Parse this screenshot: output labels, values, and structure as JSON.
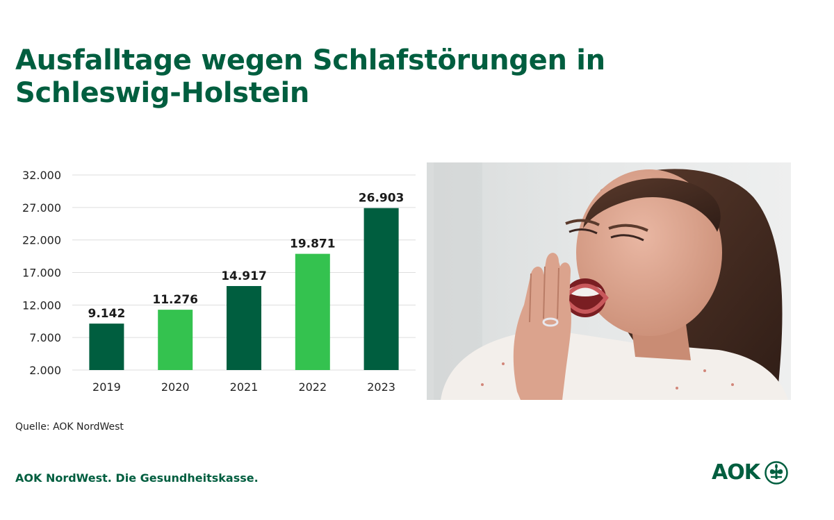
{
  "page": {
    "title": "Ausfalltage wegen Schlafstörungen in Schleswig-Holstein",
    "source": "Quelle: AOK NordWest",
    "footer": "AOK NordWest. Die Gesundheitskasse.",
    "logo_text": "AOK"
  },
  "colors": {
    "brand_dark_green": "#005e3f",
    "bright_green": "#34c24f",
    "grid": "#dddddd"
  },
  "photo": {
    "icon": "yawning-woman-photo"
  },
  "chart_data": {
    "type": "bar",
    "categories": [
      "2019",
      "2020",
      "2021",
      "2022",
      "2023"
    ],
    "values": [
      9142,
      11276,
      14917,
      19871,
      26903
    ],
    "value_labels": [
      "9.142",
      "11.276",
      "14.917",
      "19.871",
      "26.903"
    ],
    "bar_colors": [
      "#005e3f",
      "#34c24f",
      "#005e3f",
      "#34c24f",
      "#005e3f"
    ],
    "yticks": [
      2000,
      7000,
      12000,
      17000,
      22000,
      27000,
      32000
    ],
    "ytick_labels": [
      "2.000",
      "7.000",
      "12.000",
      "17.000",
      "22.000",
      "27.000",
      "32.000"
    ],
    "ylim": [
      2000,
      32000
    ],
    "grid": true,
    "legend": "none"
  }
}
